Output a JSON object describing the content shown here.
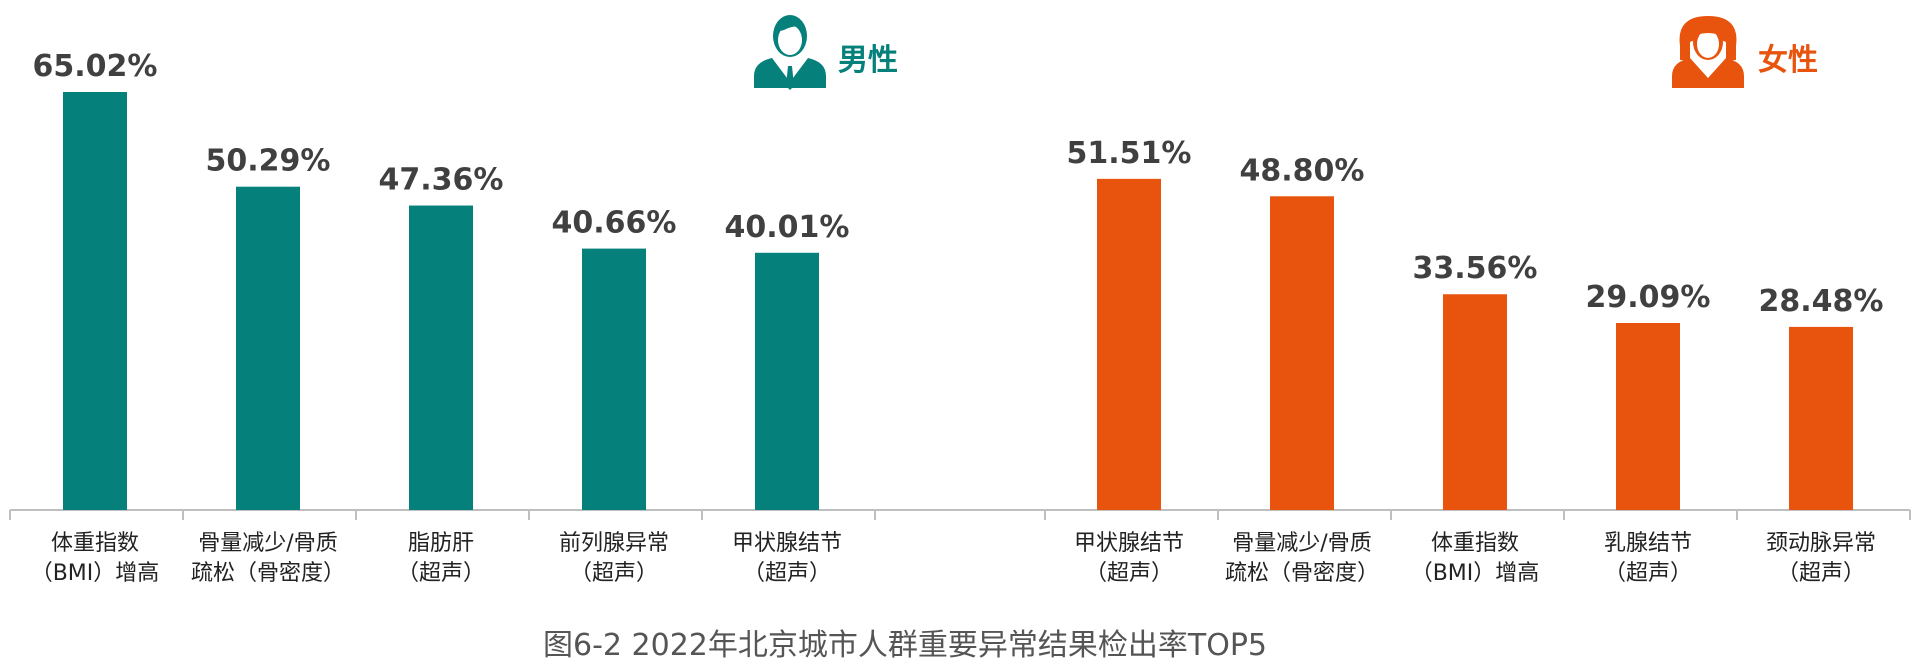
{
  "chart_data": [
    {
      "type": "bar",
      "group": "男性",
      "color": "#05807a",
      "categories": [
        [
          "体重指数",
          "（BMI）增高"
        ],
        [
          "骨量减少/骨质",
          "疏松（骨密度）"
        ],
        [
          "脂肪肝",
          "（超声）"
        ],
        [
          "前列腺异常",
          "（超声）"
        ],
        [
          "甲状腺结节",
          "（超声）"
        ]
      ],
      "values": [
        65.02,
        50.29,
        47.36,
        40.66,
        40.01
      ],
      "value_labels": [
        "65.02%",
        "50.29%",
        "47.36%",
        "40.66%",
        "40.01%"
      ],
      "ylim": [
        0,
        65.02
      ],
      "legend": {
        "label": "男性",
        "icon": "male-avatar-icon"
      }
    },
    {
      "type": "bar",
      "group": "女性",
      "color": "#e8530e",
      "categories": [
        [
          "甲状腺结节",
          "（超声）"
        ],
        [
          "骨量减少/骨质",
          "疏松（骨密度）"
        ],
        [
          "体重指数",
          "（BMI）增高"
        ],
        [
          "乳腺结节",
          "（超声）"
        ],
        [
          "颈动脉异常",
          "（超声）"
        ]
      ],
      "values": [
        51.51,
        48.8,
        33.56,
        29.09,
        28.48
      ],
      "value_labels": [
        "51.51%",
        "48.80%",
        "33.56%",
        "29.09%",
        "28.48%"
      ],
      "ylim": [
        0,
        65.02
      ],
      "legend": {
        "label": "女性",
        "icon": "female-avatar-icon"
      }
    }
  ],
  "caption": "图6-2 2022年北京城市人群重要异常结果检出率TOP5",
  "grid": false
}
